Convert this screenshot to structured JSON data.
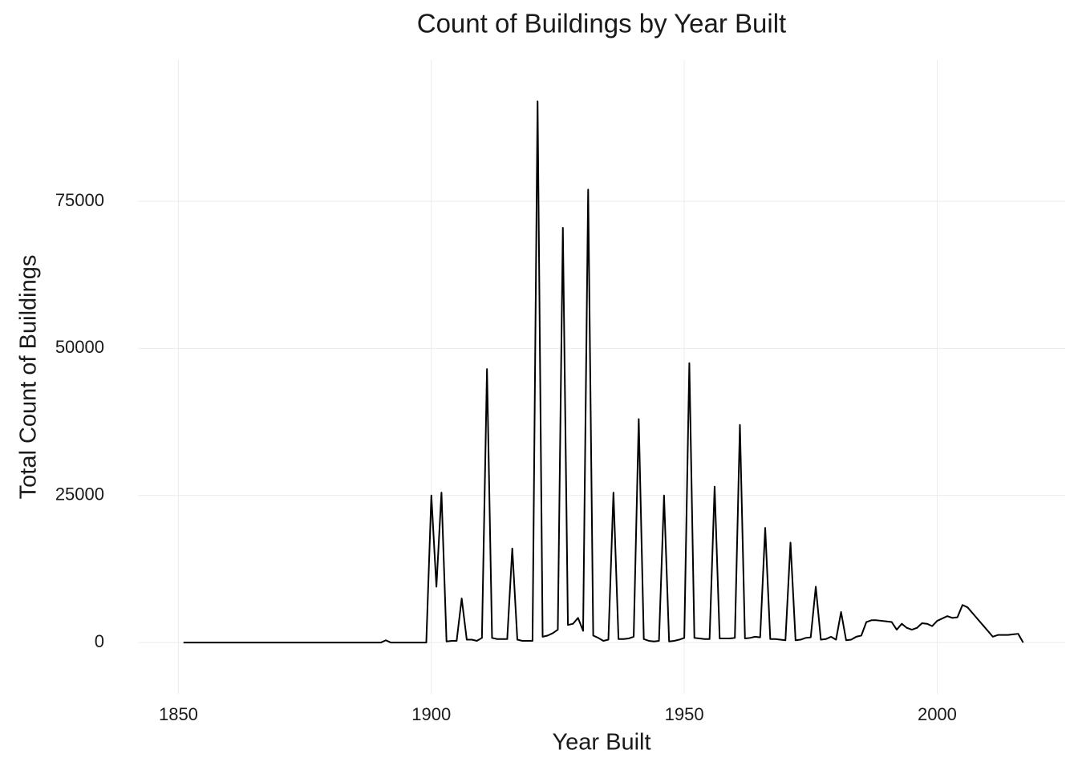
{
  "chart_data": {
    "type": "line",
    "title": "Count of Buildings by Year Built",
    "x_label": "Year Built",
    "y_label": "Total Count of Buildings",
    "x": [
      1851,
      1852,
      1853,
      1854,
      1855,
      1856,
      1857,
      1858,
      1859,
      1860,
      1861,
      1862,
      1863,
      1864,
      1865,
      1866,
      1867,
      1868,
      1869,
      1870,
      1871,
      1872,
      1873,
      1874,
      1875,
      1876,
      1877,
      1878,
      1879,
      1880,
      1881,
      1882,
      1883,
      1884,
      1885,
      1886,
      1887,
      1888,
      1889,
      1890,
      1891,
      1892,
      1893,
      1894,
      1895,
      1896,
      1897,
      1898,
      1899,
      1900,
      1901,
      1902,
      1903,
      1904,
      1905,
      1906,
      1907,
      1908,
      1909,
      1910,
      1911,
      1912,
      1913,
      1914,
      1915,
      1916,
      1917,
      1918,
      1919,
      1920,
      1921,
      1922,
      1923,
      1924,
      1925,
      1926,
      1927,
      1928,
      1929,
      1930,
      1931,
      1932,
      1933,
      1934,
      1935,
      1936,
      1937,
      1938,
      1939,
      1940,
      1941,
      1942,
      1943,
      1944,
      1945,
      1946,
      1947,
      1948,
      1949,
      1950,
      1951,
      1952,
      1953,
      1954,
      1955,
      1956,
      1957,
      1958,
      1959,
      1960,
      1961,
      1962,
      1963,
      1964,
      1965,
      1966,
      1967,
      1968,
      1969,
      1970,
      1971,
      1972,
      1973,
      1974,
      1975,
      1976,
      1977,
      1978,
      1979,
      1980,
      1981,
      1982,
      1983,
      1984,
      1985,
      1986,
      1987,
      1988,
      1989,
      1990,
      1991,
      1992,
      1993,
      1994,
      1995,
      1996,
      1997,
      1998,
      1999,
      2000,
      2001,
      2002,
      2003,
      2004,
      2005,
      2006,
      2007,
      2008,
      2009,
      2010,
      2011,
      2012,
      2013,
      2014,
      2015,
      2016,
      2017
    ],
    "values": [
      0,
      0,
      0,
      0,
      0,
      0,
      0,
      0,
      0,
      0,
      0,
      0,
      0,
      0,
      0,
      0,
      0,
      0,
      0,
      0,
      0,
      0,
      0,
      0,
      0,
      0,
      0,
      0,
      0,
      0,
      0,
      0,
      0,
      0,
      0,
      0,
      0,
      0,
      0,
      0,
      400,
      0,
      0,
      0,
      0,
      0,
      0,
      0,
      0,
      25000,
      9500,
      25500,
      200,
      300,
      300,
      7500,
      500,
      500,
      300,
      800,
      46500,
      800,
      600,
      600,
      600,
      16000,
      500,
      300,
      300,
      300,
      92000,
      1000,
      1200,
      1600,
      2200,
      70500,
      3000,
      3200,
      4200,
      2000,
      77000,
      1200,
      800,
      300,
      500,
      25500,
      600,
      600,
      700,
      1000,
      38000,
      600,
      300,
      200,
      300,
      25000,
      200,
      300,
      500,
      800,
      47500,
      800,
      700,
      600,
      600,
      26500,
      700,
      700,
      700,
      800,
      37000,
      700,
      800,
      1000,
      900,
      19500,
      600,
      600,
      500,
      400,
      17000,
      400,
      500,
      800,
      900,
      9500,
      500,
      600,
      1000,
      500,
      5200,
      400,
      500,
      1000,
      1200,
      3500,
      3800,
      3800,
      3700,
      3600,
      3500,
      2200,
      3200,
      2500,
      2200,
      2500,
      3300,
      3200,
      2800,
      3700,
      4100,
      4500,
      4200,
      4300,
      6400,
      6000,
      5000,
      4000,
      3000,
      2000,
      1000,
      1300,
      1300,
      1300,
      1400,
      1500,
      0
    ],
    "color": "#000000",
    "xlim": [
      1842,
      2025.3
    ],
    "xticks": [
      1850,
      1900,
      1950,
      2000
    ],
    "ylim": [
      -8700,
      99000
    ],
    "yticks": [
      0,
      25000,
      50000,
      75000
    ],
    "grid": true
  }
}
